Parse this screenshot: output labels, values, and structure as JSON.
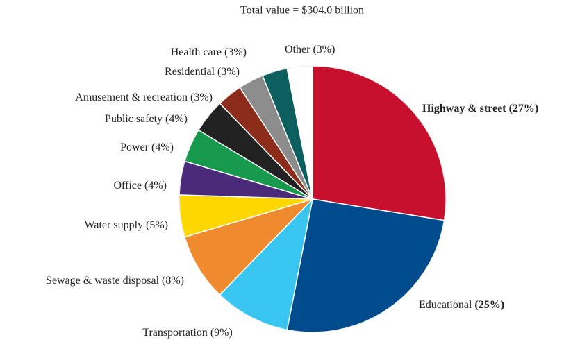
{
  "chart_data": {
    "type": "pie",
    "title": "Total value = $304.0 billion",
    "categories": [
      "Highway & street",
      "Educational",
      "Transportation",
      "Sewage & waste disposal",
      "Water supply",
      "Office",
      "Power",
      "Public safety",
      "Amusement & recreation",
      "Residential",
      "Health care",
      "Other"
    ],
    "values": [
      27,
      25,
      9,
      8,
      5,
      4,
      4,
      4,
      3,
      3,
      3,
      3
    ],
    "value_labels": [
      "(27%)",
      "(25%)",
      "(9%)",
      "(8%)",
      "(5%)",
      "(4%)",
      "(4%)",
      "(4%)",
      "(3%)",
      "(3%)",
      "(3%)",
      "(3%)"
    ],
    "colors": [
      "#c8102e",
      "#004b8d",
      "#38c6f0",
      "#f08a2e",
      "#ffd700",
      "#4b2a7b",
      "#179a4e",
      "#222222",
      "#8b2d1a",
      "#8c8c8c",
      "#0d5f5f",
      "#ffffff"
    ]
  }
}
